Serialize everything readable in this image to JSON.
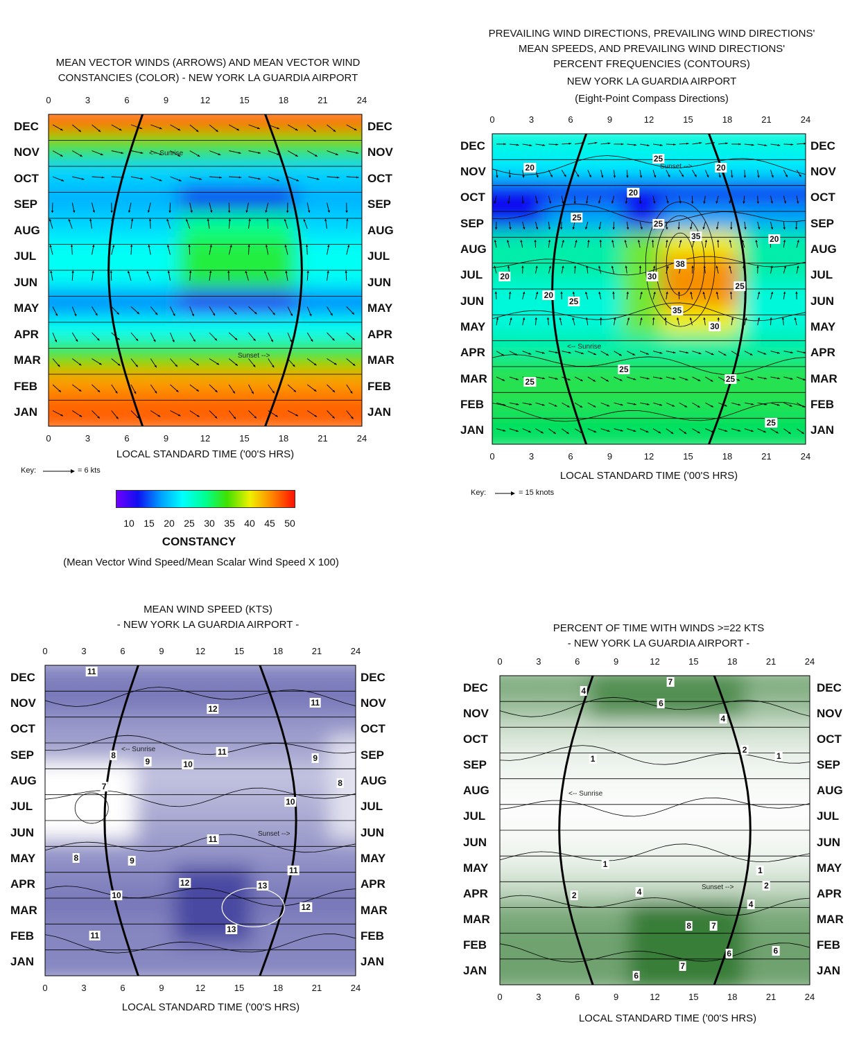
{
  "months": [
    "DEC",
    "NOV",
    "OCT",
    "SEP",
    "AUG",
    "JUL",
    "JUN",
    "MAY",
    "APR",
    "MAR",
    "FEB",
    "JAN"
  ],
  "hours": [
    "0",
    "3",
    "6",
    "9",
    "12",
    "15",
    "18",
    "21",
    "24"
  ],
  "sunrise_label": "<-- Sunrise",
  "sunset_label": "Sunset -->",
  "xlabel": "LOCAL STANDARD TIME ('00'S HRS)",
  "panel1": {
    "title_lines": [
      "MEAN VECTOR WINDS (ARROWS) AND MEAN VECTOR WIND",
      "CONSTANCIES (COLOR) -  NEW YORK LA GUARDIA AIRPORT"
    ],
    "key_label": "Key:",
    "key_value": "= 6 kts",
    "colorbar_ticks": [
      "10",
      "15",
      "20",
      "25",
      "30",
      "35",
      "40",
      "45",
      "50"
    ],
    "colorbar_title": "CONSTANCY",
    "colorbar_subtitle": "(Mean Vector Wind Speed/Mean Scalar Wind Speed X 100)"
  },
  "panel2": {
    "title_lines": [
      "PREVAILING WIND DIRECTIONS, PREVAILING WIND DIRECTIONS'",
      "MEAN SPEEDS, AND PREVAILING WIND DIRECTIONS'",
      "PERCENT FREQUENCIES (CONTOURS)",
      "NEW YORK LA GUARDIA AIRPORT",
      "(Eight-Point Compass Directions)"
    ],
    "key_label": "Key:",
    "key_value": "= 15 knots",
    "contour_labels": [
      "25",
      "20",
      "20",
      "20",
      "25",
      "25",
      "20",
      "35",
      "38",
      "30",
      "20",
      "25",
      "20",
      "25",
      "35",
      "30",
      "25",
      "25",
      "25",
      "25"
    ]
  },
  "panel3": {
    "title_lines": [
      "MEAN WIND SPEED (KTS)",
      "-  NEW YORK  LA GUARDIA AIRPORT -"
    ],
    "contour_labels": [
      "11",
      "12",
      "11",
      "11",
      "8",
      "9",
      "10",
      "9",
      "7",
      "8",
      "10",
      "11",
      "8",
      "9",
      "11",
      "12",
      "13",
      "10",
      "12",
      "13",
      "11"
    ]
  },
  "panel4": {
    "title_lines": [
      "PERCENT OF TIME WITH WINDS >=22 KTS",
      "- NEW YORK LA GUARDIA AIRPORT -"
    ],
    "contour_labels": [
      "7",
      "4",
      "6",
      "4",
      "2",
      "1",
      "1",
      "1",
      "1",
      "2",
      "2",
      "4",
      "4",
      "8",
      "7",
      "6",
      "6",
      "6",
      "7"
    ]
  },
  "colors": {
    "constancy_scale": [
      "#7000ff",
      "#1010f0",
      "#00a0ff",
      "#00ffff",
      "#00ff90",
      "#40e000",
      "#f0f000",
      "#ff8000",
      "#ff1000"
    ],
    "speed_scale": [
      "#ffffff",
      "#3a3a9a"
    ],
    "gust_scale": [
      "#ffffff",
      "#1a6a1a"
    ],
    "frequency_scale": [
      "#1010f0",
      "#00ffff",
      "#00e060",
      "#f0f000",
      "#ff2000"
    ]
  },
  "chart_data": [
    {
      "type": "heatmap",
      "title": "MEAN VECTOR WINDS (ARROWS) AND MEAN VECTOR WIND CONSTANCIES (COLOR) - NEW YORK LA GUARDIA AIRPORT",
      "xlabel": "LOCAL STANDARD TIME ('00'S HRS)",
      "x_ticks": [
        0,
        3,
        6,
        9,
        12,
        15,
        18,
        21,
        24
      ],
      "y_categories": [
        "DEC",
        "NOV",
        "OCT",
        "SEP",
        "AUG",
        "JUL",
        "JUN",
        "MAY",
        "APR",
        "MAR",
        "FEB",
        "JAN"
      ],
      "colorbar_range": [
        10,
        50
      ],
      "colorbar_label": "CONSTANCY",
      "key": "6 kts",
      "constancy_by_month_approx": {
        "DEC": 45,
        "NOV": 35,
        "OCT": 22,
        "SEP": 20,
        "AUG": 22,
        "JUL": 25,
        "JUN": 25,
        "MAY": 18,
        "APR": 25,
        "MAR": 35,
        "FEB": 45,
        "JAN": 48
      }
    },
    {
      "type": "heatmap",
      "title": "PREVAILING WIND DIRECTIONS, PREVAILING WIND DIRECTIONS' MEAN SPEEDS, AND PREVAILING WIND DIRECTIONS' PERCENT FREQUENCIES (CONTOURS) NEW YORK LA GUARDIA AIRPORT (Eight-Point Compass Directions)",
      "xlabel": "LOCAL STANDARD TIME ('00'S HRS)",
      "x_ticks": [
        0,
        3,
        6,
        9,
        12,
        15,
        18,
        21,
        24
      ],
      "y_categories": [
        "DEC",
        "NOV",
        "OCT",
        "SEP",
        "AUG",
        "JUL",
        "JUN",
        "MAY",
        "APR",
        "MAR",
        "FEB",
        "JAN"
      ],
      "key": "15 knots",
      "contour_values": [
        20,
        25,
        30,
        35,
        38
      ],
      "max_value": 38
    },
    {
      "type": "heatmap",
      "title": "MEAN WIND SPEED (KTS) - NEW YORK LA GUARDIA AIRPORT -",
      "xlabel": "LOCAL STANDARD TIME ('00'S HRS)",
      "x_ticks": [
        0,
        3,
        6,
        9,
        12,
        15,
        18,
        21,
        24
      ],
      "y_categories": [
        "DEC",
        "NOV",
        "OCT",
        "SEP",
        "AUG",
        "JUL",
        "JUN",
        "MAY",
        "APR",
        "MAR",
        "FEB",
        "JAN"
      ],
      "contour_values": [
        7,
        8,
        9,
        10,
        11,
        12,
        13
      ],
      "min_value": 7,
      "max_value": 13
    },
    {
      "type": "heatmap",
      "title": "PERCENT OF TIME WITH WINDS >=22 KTS - NEW YORK LA GUARDIA AIRPORT -",
      "xlabel": "LOCAL STANDARD TIME ('00'S HRS)",
      "x_ticks": [
        0,
        3,
        6,
        9,
        12,
        15,
        18,
        21,
        24
      ],
      "y_categories": [
        "DEC",
        "NOV",
        "OCT",
        "SEP",
        "AUG",
        "JUL",
        "JUN",
        "MAY",
        "APR",
        "MAR",
        "FEB",
        "JAN"
      ],
      "contour_values": [
        1,
        2,
        4,
        6,
        7,
        8
      ],
      "min_value": 1,
      "max_value": 8
    }
  ]
}
